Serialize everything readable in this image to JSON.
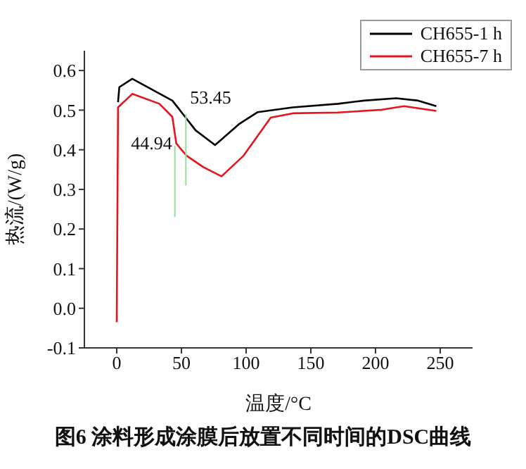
{
  "chart_data": {
    "type": "line",
    "title": "图6  涂料形成涂膜后放置不同时间的DSC曲线",
    "xlabel": "温度/°C",
    "ylabel": "热流/(W/g)",
    "xlim": [
      -25,
      275
    ],
    "xticks": [
      0,
      50,
      100,
      150,
      200,
      250
    ],
    "ylim": [
      -0.1,
      0.65
    ],
    "yticks": [
      -0.1,
      {
        "value": 0,
        "label": "0.0"
      },
      0.1,
      0.2,
      0.3,
      0.4,
      0.5,
      0.6
    ],
    "legend": "top right",
    "marker": "none",
    "line_style": "solid",
    "annotations": [
      {
        "text": "53.45",
        "x": 53.45,
        "y": 0.49
      },
      {
        "text": "44.94",
        "x": 44.94,
        "y": 0.41
      }
    ],
    "series": [
      {
        "name": "CH655-1 h",
        "color": "#000000",
        "x": [
          1,
          2,
          12,
          43,
          50,
          61,
          76,
          95,
          109,
          136,
          171,
          191,
          216,
          233,
          247
        ],
        "values": [
          0.52,
          0.558,
          0.579,
          0.524,
          0.495,
          0.449,
          0.412,
          0.466,
          0.495,
          0.507,
          0.516,
          0.524,
          0.53,
          0.524,
          0.51
        ]
      },
      {
        "name": "CH655-7 h",
        "color": "#e8141c",
        "x": [
          0,
          1,
          12,
          33,
          43,
          46,
          54,
          67,
          81,
          98,
          119,
          136,
          171,
          205,
          222,
          247
        ],
        "values": [
          -0.035,
          0.507,
          0.541,
          0.516,
          0.483,
          0.416,
          0.385,
          0.356,
          0.333,
          0.385,
          0.481,
          0.492,
          0.494,
          0.501,
          0.51,
          0.498
        ]
      }
    ]
  }
}
